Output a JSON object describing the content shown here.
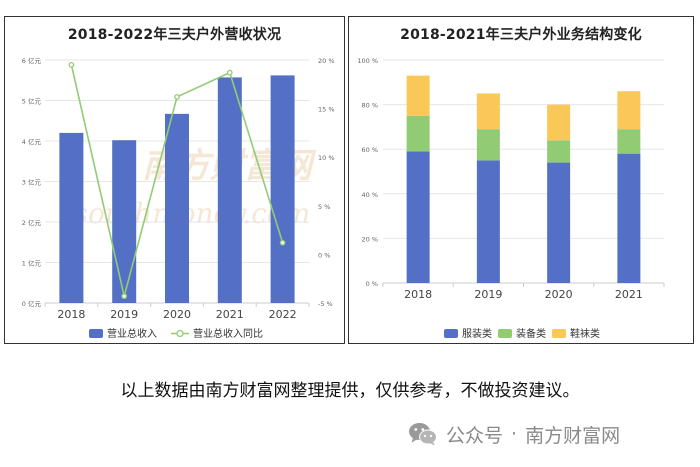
{
  "colors": {
    "bar_blue": "#5470c6",
    "line_green": "#91cc75",
    "seg_green": "#91cc75",
    "seg_yellow": "#fac858",
    "grid": "#e6e6e6",
    "axis_text": "#666666",
    "watermark": "#d9a86c"
  },
  "chart_data": [
    {
      "type": "bar",
      "title": "2018-2022年三夫户外营收状况",
      "categories": [
        "2018",
        "2019",
        "2020",
        "2021",
        "2022"
      ],
      "series": [
        {
          "name": "营业总收入",
          "type": "bar",
          "axis": "left",
          "values": [
            4.2,
            4.02,
            4.67,
            5.57,
            5.62
          ]
        },
        {
          "name": "营业总收入同比",
          "type": "line",
          "axis": "right",
          "values": [
            19.5,
            -4.3,
            16.2,
            18.7,
            1.2
          ]
        }
      ],
      "ylim": [
        0,
        6
      ],
      "y_ticks": [
        0,
        1,
        2,
        3,
        4,
        5,
        6
      ],
      "y_tick_labels": [
        "0 亿元",
        "1 亿元",
        "2 亿元",
        "3 亿元",
        "4 亿元",
        "5 亿元",
        "6 亿元"
      ],
      "y2lim": [
        -5,
        20
      ],
      "y2_ticks": [
        -5,
        0,
        5,
        10,
        15,
        20
      ],
      "y2_tick_labels": [
        "-5 %",
        "0 %",
        "5 %",
        "10 %",
        "15 %",
        "20 %"
      ],
      "legend_position": "bottom",
      "grid": true
    },
    {
      "type": "bar",
      "stacked": true,
      "title": "2018-2021年三夫户外业务结构变化",
      "categories": [
        "2018",
        "2019",
        "2020",
        "2021"
      ],
      "series": [
        {
          "name": "服装类",
          "values": [
            59,
            55,
            54,
            58
          ]
        },
        {
          "name": "装备类",
          "values": [
            16,
            14,
            10,
            11
          ]
        },
        {
          "name": "鞋袜类",
          "values": [
            18,
            16,
            16,
            17
          ]
        }
      ],
      "ylim": [
        0,
        100
      ],
      "y_ticks": [
        0,
        20,
        40,
        60,
        80,
        100
      ],
      "y_tick_labels": [
        "0 %",
        "20 %",
        "40 %",
        "60 %",
        "80 %",
        "100 %"
      ],
      "legend_position": "bottom",
      "grid": true
    }
  ],
  "watermark": {
    "text_cn": "南方财富网",
    "text_en": "southmoney.com"
  },
  "caption": "以上数据由南方财富网整理提供，仅供参考，不做投资建议。",
  "brand": {
    "prefix": "公众号",
    "separator": "·",
    "name": "南方财富网"
  }
}
